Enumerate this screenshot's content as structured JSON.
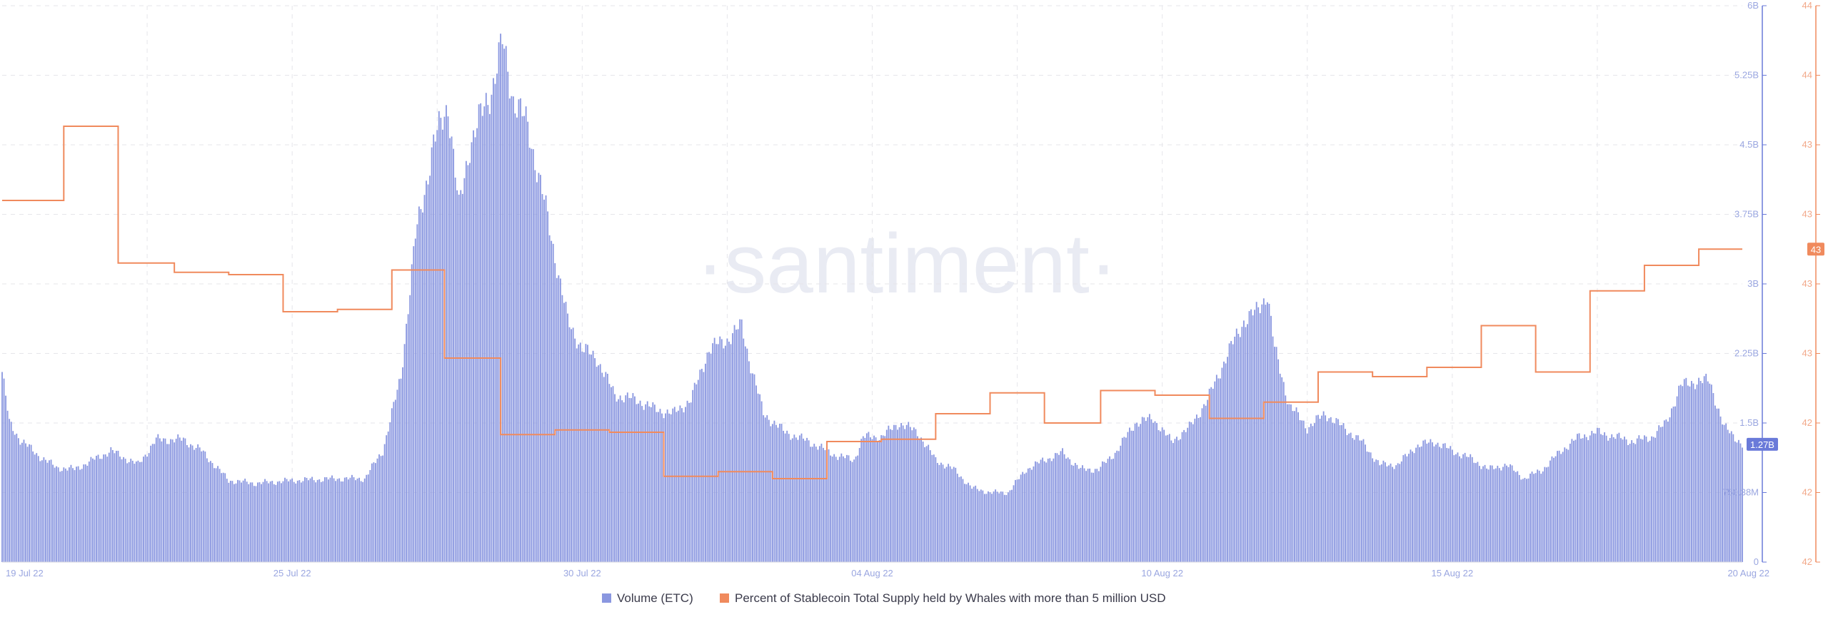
{
  "watermark": "·santiment·",
  "chart_data": {
    "type": "bar",
    "x_ticks": [
      "19 Jul 22",
      "25 Jul 22",
      "30 Jul 22",
      "04 Aug 22",
      "10 Aug 22",
      "15 Aug 22",
      "20 Aug 22"
    ],
    "y_left": {
      "ticks": [
        "0",
        "750.38M",
        "1.5B",
        "2.25B",
        "3B",
        "3.75B",
        "4.5B",
        "5.25B",
        "6B"
      ],
      "range": [
        0,
        6000000000
      ],
      "current_label": "1.27B",
      "color": "#6a7ad9"
    },
    "y_right": {
      "ticks": [
        "42",
        "42",
        "42",
        "43",
        "43",
        "43",
        "43",
        "44",
        "44"
      ],
      "range": [
        41.6,
        44.0
      ],
      "current_label": "43",
      "color": "#f08a5d"
    },
    "grid": true,
    "legend_position": "bottom-center",
    "series": [
      {
        "name": "Volume (ETC)",
        "type": "bar",
        "color": "#8a97e0",
        "anchors": [
          [
            0,
            2050000000.0
          ],
          [
            4,
            1500000000.0
          ],
          [
            10,
            1320000000.0
          ],
          [
            20,
            1150000000.0
          ],
          [
            30,
            1020000000.0
          ],
          [
            40,
            1000000000.0
          ],
          [
            60,
            1200000000.0
          ],
          [
            75,
            1050000000.0
          ],
          [
            85,
            1320000000.0
          ],
          [
            100,
            1320000000.0
          ],
          [
            110,
            1200000000.0
          ],
          [
            125,
            880000000.0
          ],
          [
            140,
            850000000.0
          ],
          [
            160,
            880000000.0
          ],
          [
            185,
            900000000.0
          ],
          [
            200,
            900000000.0
          ],
          [
            210,
            1200000000.0
          ],
          [
            220,
            2000000000.0
          ],
          [
            228,
            3500000000.0
          ],
          [
            238,
            4500000000.0
          ],
          [
            246,
            4950000000.0
          ],
          [
            252,
            3800000000.0
          ],
          [
            258,
            4500000000.0
          ],
          [
            264,
            4800000000.0
          ],
          [
            270,
            5100000000.0
          ],
          [
            276,
            5600000000.0
          ],
          [
            282,
            5000000000.0
          ],
          [
            290,
            4700000000.0
          ],
          [
            300,
            3800000000.0
          ],
          [
            312,
            2600000000.0
          ],
          [
            320,
            2300000000.0
          ],
          [
            328,
            2200000000.0
          ],
          [
            338,
            1800000000.0
          ],
          [
            350,
            1750000000.0
          ],
          [
            360,
            1650000000.0
          ],
          [
            370,
            1600000000.0
          ],
          [
            380,
            1750000000.0
          ],
          [
            390,
            2300000000.0
          ],
          [
            400,
            2400000000.0
          ],
          [
            408,
            2550000000.0
          ],
          [
            412,
            2200000000.0
          ],
          [
            420,
            1600000000.0
          ],
          [
            432,
            1400000000.0
          ],
          [
            445,
            1300000000.0
          ],
          [
            460,
            1150000000.0
          ],
          [
            470,
            1100000000.0
          ],
          [
            475,
            1350000000.0
          ],
          [
            485,
            1350000000.0
          ],
          [
            495,
            1500000000.0
          ],
          [
            505,
            1400000000.0
          ],
          [
            515,
            1100000000.0
          ],
          [
            525,
            1000000000.0
          ],
          [
            535,
            800000000.0
          ],
          [
            545,
            750000000.0
          ],
          [
            555,
            750000000.0
          ],
          [
            565,
            1000000000.0
          ],
          [
            575,
            1100000000.0
          ],
          [
            585,
            1180000000.0
          ],
          [
            595,
            1000000000.0
          ],
          [
            605,
            1000000000.0
          ],
          [
            615,
            1200000000.0
          ],
          [
            625,
            1500000000.0
          ],
          [
            635,
            1550000000.0
          ],
          [
            645,
            1300000000.0
          ],
          [
            655,
            1450000000.0
          ],
          [
            665,
            1750000000.0
          ],
          [
            675,
            2200000000.0
          ],
          [
            685,
            2600000000.0
          ],
          [
            692,
            2700000000.0
          ],
          [
            698,
            2900000000.0
          ],
          [
            702,
            2300000000.0
          ],
          [
            710,
            1700000000.0
          ],
          [
            720,
            1450000000.0
          ],
          [
            730,
            1600000000.0
          ],
          [
            740,
            1450000000.0
          ],
          [
            750,
            1300000000.0
          ],
          [
            760,
            1050000000.0
          ],
          [
            770,
            1050000000.0
          ],
          [
            780,
            1250000000.0
          ],
          [
            790,
            1300000000.0
          ],
          [
            800,
            1200000000.0
          ],
          [
            810,
            1120000000.0
          ],
          [
            820,
            1000000000.0
          ],
          [
            830,
            1050000000.0
          ],
          [
            840,
            900000000.0
          ],
          [
            850,
            1000000000.0
          ],
          [
            860,
            1200000000.0
          ],
          [
            870,
            1350000000.0
          ],
          [
            880,
            1400000000.0
          ],
          [
            890,
            1350000000.0
          ],
          [
            900,
            1300000000.0
          ],
          [
            910,
            1350000000.0
          ],
          [
            918,
            1500000000.0
          ],
          [
            926,
            1900000000.0
          ],
          [
            934,
            1950000000.0
          ],
          [
            942,
            1950000000.0
          ],
          [
            950,
            1450000000.0
          ],
          [
            956,
            1350000000.0
          ],
          [
            960,
            1270000000.0
          ]
        ]
      },
      {
        "name": "Percent of Stablecoin Total Supply held by Whales with more than 5 million USD",
        "type": "step",
        "color": "#f08a5d",
        "steps": [
          [
            0,
            43.16
          ],
          [
            34,
            43.16
          ],
          [
            34,
            43.48
          ],
          [
            64,
            43.48
          ],
          [
            64,
            42.89
          ],
          [
            95,
            42.89
          ],
          [
            95,
            42.85
          ],
          [
            125,
            42.85
          ],
          [
            125,
            42.84
          ],
          [
            155,
            42.84
          ],
          [
            155,
            42.68
          ],
          [
            185,
            42.68
          ],
          [
            185,
            42.69
          ],
          [
            215,
            42.69
          ],
          [
            215,
            42.86
          ],
          [
            244,
            42.86
          ],
          [
            244,
            42.48
          ],
          [
            275,
            42.48
          ],
          [
            275,
            42.15
          ],
          [
            305,
            42.15
          ],
          [
            305,
            42.17
          ],
          [
            335,
            42.17
          ],
          [
            335,
            42.16
          ],
          [
            365,
            42.16
          ],
          [
            365,
            41.97
          ],
          [
            395,
            41.97
          ],
          [
            395,
            41.99
          ],
          [
            425,
            41.99
          ],
          [
            425,
            41.96
          ],
          [
            455,
            41.96
          ],
          [
            455,
            42.12
          ],
          [
            485,
            42.12
          ],
          [
            485,
            42.13
          ],
          [
            515,
            42.13
          ],
          [
            515,
            42.24
          ],
          [
            545,
            42.24
          ],
          [
            545,
            42.33
          ],
          [
            575,
            42.33
          ],
          [
            575,
            42.2
          ],
          [
            606,
            42.2
          ],
          [
            606,
            42.34
          ],
          [
            636,
            42.34
          ],
          [
            636,
            42.32
          ],
          [
            666,
            42.32
          ],
          [
            666,
            42.22
          ],
          [
            696,
            42.22
          ],
          [
            696,
            42.29
          ],
          [
            726,
            42.29
          ],
          [
            726,
            42.42
          ],
          [
            756,
            42.42
          ],
          [
            756,
            42.4
          ],
          [
            786,
            42.4
          ],
          [
            786,
            42.44
          ],
          [
            816,
            42.44
          ],
          [
            816,
            42.62
          ],
          [
            846,
            42.62
          ],
          [
            846,
            42.42
          ],
          [
            876,
            42.42
          ],
          [
            876,
            42.77
          ],
          [
            906,
            42.77
          ],
          [
            906,
            42.88
          ],
          [
            936,
            42.88
          ],
          [
            936,
            42.95
          ],
          [
            960,
            42.95
          ]
        ]
      }
    ],
    "bar_count": 961
  }
}
